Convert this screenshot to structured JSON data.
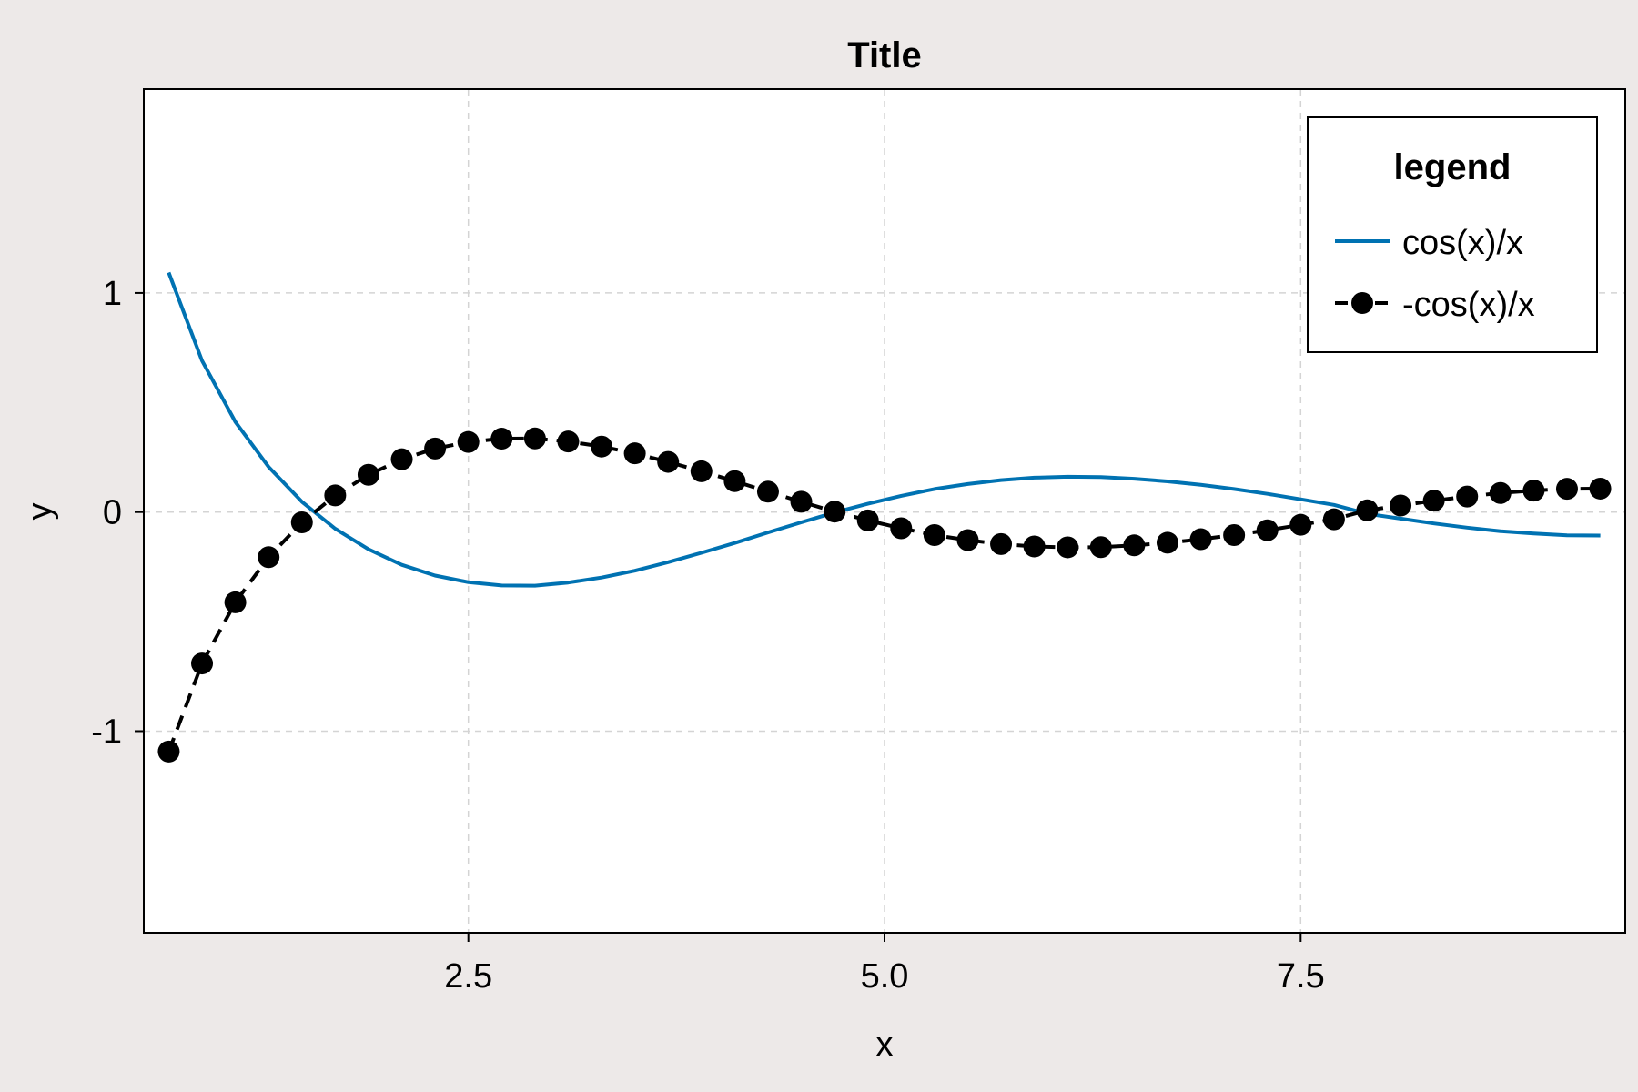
{
  "chart_data": {
    "type": "line",
    "title": "Title",
    "xlabel": "x",
    "ylabel": "y",
    "xlim": [
      0.55,
      9.45
    ],
    "ylim": [
      -1.92,
      1.93
    ],
    "xticks": [
      2.5,
      5.0,
      7.5
    ],
    "xtick_labels": [
      "2.5",
      "5.0",
      "7.5"
    ],
    "yticks": [
      -1,
      0,
      1
    ],
    "ytick_labels": [
      "-1",
      "0",
      "1"
    ],
    "grid": true,
    "legend": {
      "title": "legend",
      "position": "top-right"
    },
    "colors": {
      "series_1": "#0072b2",
      "series_2": "#000000",
      "background": "#ede9e8",
      "plot_area": "#ffffff"
    },
    "x": [
      0.7,
      0.9,
      1.1,
      1.3,
      1.5,
      1.7,
      1.9,
      2.1,
      2.3,
      2.5,
      2.7,
      2.9,
      3.1,
      3.3,
      3.5,
      3.7,
      3.9,
      4.1,
      4.3,
      4.5,
      4.7,
      4.9,
      5.1,
      5.3,
      5.5,
      5.7,
      5.9,
      6.1,
      6.3,
      6.5,
      6.7,
      6.9,
      7.1,
      7.3,
      7.5,
      7.7,
      7.9,
      8.1,
      8.3,
      8.5,
      8.7,
      8.9,
      9.1,
      9.3
    ],
    "series": [
      {
        "name": "cos(x)/x",
        "style": "solid",
        "marker": "none",
        "values": [
          1.093,
          0.691,
          0.412,
          0.206,
          0.047,
          -0.076,
          -0.17,
          -0.241,
          -0.29,
          -0.32,
          -0.335,
          -0.336,
          -0.322,
          -0.299,
          -0.268,
          -0.229,
          -0.186,
          -0.141,
          -0.093,
          -0.047,
          -0.002,
          0.038,
          0.074,
          0.105,
          0.128,
          0.146,
          0.157,
          0.161,
          0.16,
          0.152,
          0.14,
          0.124,
          0.105,
          0.083,
          0.058,
          0.033,
          -0.008,
          -0.03,
          -0.052,
          -0.071,
          -0.087,
          -0.098,
          -0.106,
          -0.107
        ]
      },
      {
        "name": "-cos(x)/x",
        "style": "dashed",
        "marker": "circle",
        "values": [
          -1.093,
          -0.691,
          -0.412,
          -0.206,
          -0.047,
          0.076,
          0.17,
          0.241,
          0.29,
          0.32,
          0.335,
          0.336,
          0.322,
          0.299,
          0.268,
          0.229,
          0.186,
          0.141,
          0.093,
          0.047,
          0.002,
          -0.038,
          -0.074,
          -0.105,
          -0.128,
          -0.146,
          -0.157,
          -0.161,
          -0.16,
          -0.152,
          -0.14,
          -0.124,
          -0.105,
          -0.083,
          -0.058,
          -0.033,
          0.008,
          0.03,
          0.052,
          0.071,
          0.087,
          0.098,
          0.106,
          0.107
        ]
      }
    ]
  }
}
